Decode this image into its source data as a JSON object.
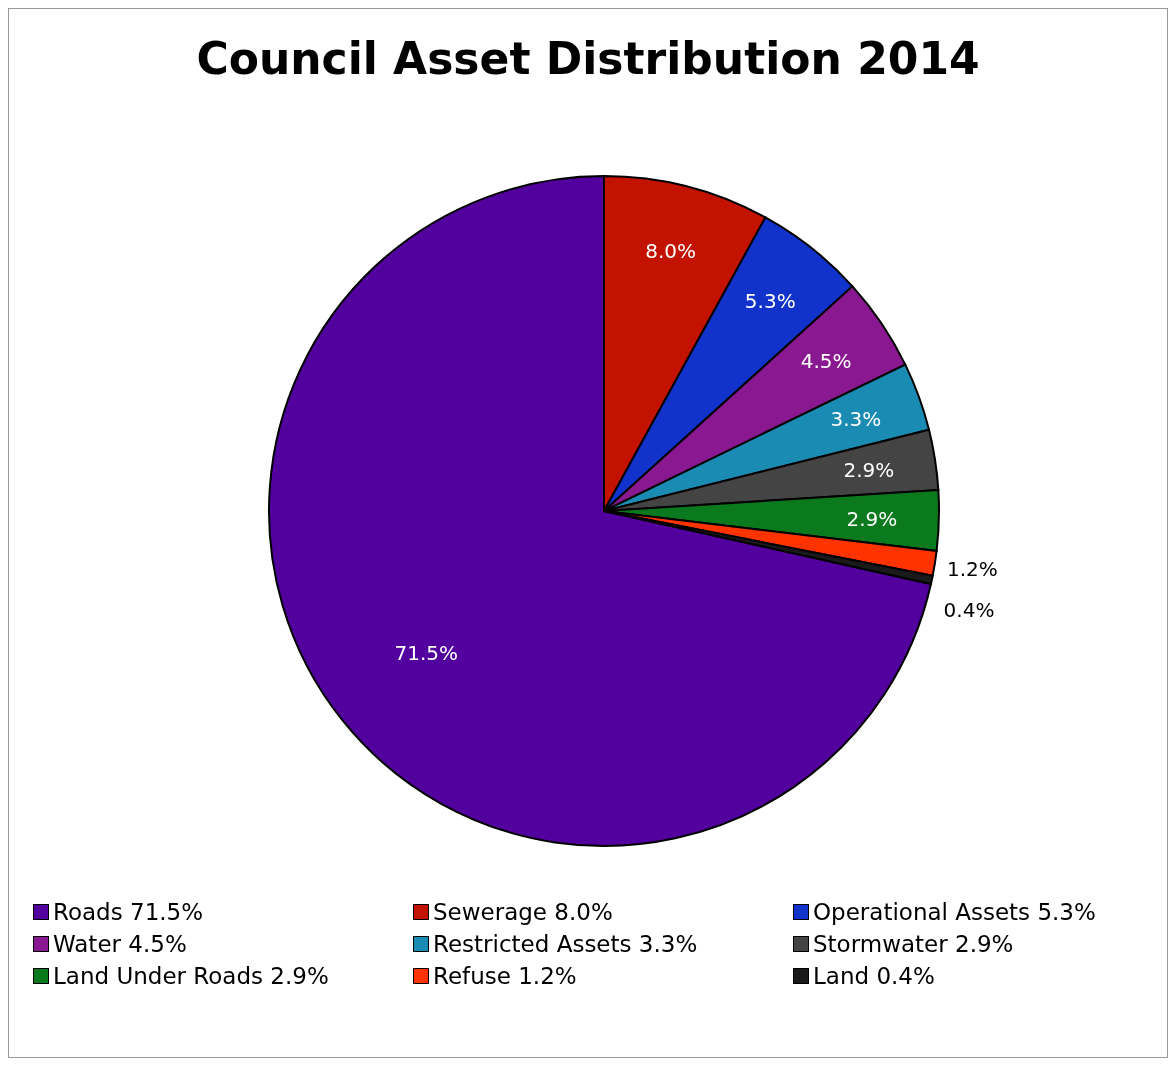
{
  "chart_data": {
    "type": "pie",
    "title": "Council Asset Distribution 2014",
    "categories": [
      "Roads",
      "Sewerage",
      "Operational Assets",
      "Water",
      "Restricted Assets",
      "Stormwater",
      "Land Under Roads",
      "Refuse",
      "Land"
    ],
    "values": [
      71.5,
      8.0,
      5.3,
      4.5,
      3.3,
      2.9,
      2.9,
      1.2,
      0.4
    ],
    "value_labels": [
      "71.5%",
      "8.0%",
      "5.3%",
      "4.5%",
      "3.3%",
      "2.9%",
      "2.9%",
      "1.2%",
      "0.4%"
    ],
    "colors": [
      "#52009e",
      "#c41200",
      "#1133cc",
      "#8a1890",
      "#1a8cb4",
      "#444444",
      "#0b7a1e",
      "#ff3300",
      "#1a1a1a"
    ],
    "legend": "bottom"
  }
}
